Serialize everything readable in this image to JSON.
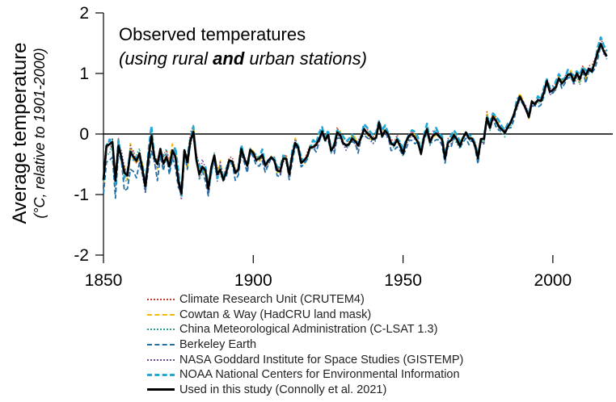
{
  "chart_data": {
    "type": "line",
    "title_line1": "Observed temperatures",
    "title_line2_pre": "(using rural ",
    "title_line2_bold": "and",
    "title_line2_post": " urban stations)",
    "ylabel": "Average temperature",
    "ylabel_sub": "(°C, relative to 1901-2000)",
    "xlabel": "",
    "xlim": [
      1850,
      2020
    ],
    "ylim": [
      -2,
      2
    ],
    "x_ticks": [
      1850,
      1900,
      1950,
      2000
    ],
    "y_ticks": [
      -2,
      -1,
      0,
      1,
      2
    ],
    "x_tick_labels": [
      "1850",
      "1900",
      "1950",
      "2000"
    ],
    "y_tick_labels": [
      "-2",
      "-1",
      "0",
      "1",
      "2"
    ],
    "zero_line": true,
    "legend_position": "bottom",
    "base": {
      "x": [
        1850,
        1852,
        1854,
        1856,
        1858,
        1860,
        1862,
        1864,
        1866,
        1868,
        1870,
        1872,
        1874,
        1876,
        1878,
        1880,
        1882,
        1884,
        1886,
        1888,
        1890,
        1892,
        1894,
        1896,
        1898,
        1900,
        1902,
        1904,
        1906,
        1908,
        1910,
        1912,
        1914,
        1916,
        1918,
        1920,
        1922,
        1924,
        1926,
        1928,
        1930,
        1932,
        1934,
        1936,
        1938,
        1940,
        1942,
        1944,
        1946,
        1948,
        1950,
        1952,
        1954,
        1956,
        1958,
        1960,
        1962,
        1964,
        1966,
        1968,
        1970,
        1972,
        1974,
        1976,
        1978,
        1980,
        1982,
        1984,
        1986,
        1988,
        1990,
        1992,
        1994,
        1996,
        1998,
        2000,
        2002,
        2004,
        2006,
        2008,
        2010,
        2012,
        2014,
        2016,
        2018
      ],
      "y": [
        -0.6,
        -0.25,
        -0.5,
        -0.3,
        -0.45,
        -0.65,
        -0.3,
        -0.9,
        -0.2,
        -0.5,
        -0.4,
        -0.3,
        -0.55,
        -0.8,
        -0.25,
        0.05,
        -0.45,
        -0.75,
        -0.6,
        -0.55,
        -0.7,
        -0.45,
        -0.6,
        -0.35,
        -0.5,
        -0.3,
        -0.35,
        -0.55,
        -0.3,
        -0.5,
        -0.45,
        -0.55,
        -0.2,
        -0.45,
        -0.4,
        -0.2,
        -0.15,
        -0.05,
        -0.2,
        -0.1,
        -0.05,
        -0.1,
        -0.2,
        -0.05,
        0.05,
        -0.05,
        0.1,
        0.0,
        -0.15,
        -0.1,
        -0.2,
        0.0,
        -0.15,
        -0.25,
        0.05,
        -0.1,
        -0.05,
        -0.3,
        -0.1,
        -0.2,
        0.0,
        -0.15,
        -0.3,
        -0.2,
        0.15,
        0.2,
        0.1,
        0.05,
        0.3,
        0.55,
        0.6,
        0.3,
        0.55,
        0.55,
        0.85,
        0.7,
        0.95,
        0.85,
        1.0,
        0.9,
        1.05,
        1.0,
        1.15,
        1.55,
        1.25
      ],
      "noise_seed": 7
    },
    "series": [
      {
        "name": "Climate Research Unit (CRUTEM4)",
        "color": "#c0392b",
        "style": "dotted",
        "offset": 0.03,
        "seed": 11
      },
      {
        "name": "Cowtan & Way (HadCRU land mask)",
        "color": "#f5b800",
        "style": "dashed",
        "offset": 0.01,
        "seed": 23
      },
      {
        "name": "China Meteorological Administration (C-LSAT 1.3)",
        "color": "#2a9d8f",
        "style": "dotted",
        "offset": -0.02,
        "seed": 31
      },
      {
        "name": "Berkeley Earth",
        "color": "#1f6fa8",
        "style": "dashed",
        "offset": -0.06,
        "seed": 43
      },
      {
        "name": "NASA Goddard Institute for Space Studies (GISTEMP)",
        "color": "#6a4c93",
        "style": "dotted",
        "offset": -0.01,
        "seed": 57
      },
      {
        "name": "NOAA National Centers for Environmental Information",
        "color": "#23a8d6",
        "style": "dashed-thick",
        "offset": 0.04,
        "seed": 67
      },
      {
        "name": "Used in this study (Connolly et al. 2021)",
        "color": "#000000",
        "style": "solid",
        "offset": 0.0,
        "seed": 79
      }
    ]
  }
}
